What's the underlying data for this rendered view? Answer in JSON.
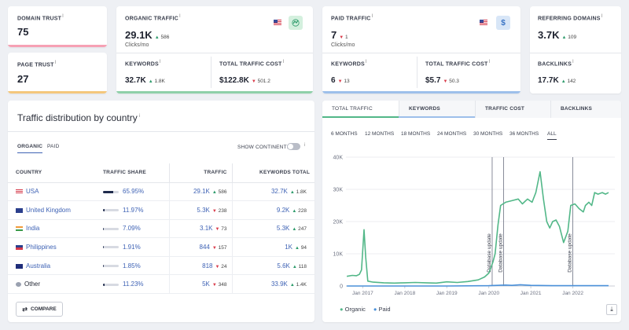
{
  "domain_trust": {
    "label": "DOMAIN TRUST",
    "info": "i",
    "value": "75",
    "color": "#f6a1b4"
  },
  "page_trust": {
    "label": "PAGE TRUST",
    "info": "i",
    "value": "27",
    "color": "#f4c77c"
  },
  "organic": {
    "label": "ORGANIC TRAFFIC",
    "info": "i",
    "value": "29.1K",
    "delta": "586",
    "delta_dir": "up",
    "sub": "Clicks/mo",
    "color": "#8fd0a9",
    "keywords": {
      "label": "KEYWORDS",
      "info": "i",
      "value": "32.7K",
      "delta": "1.8K",
      "delta_dir": "up"
    },
    "cost": {
      "label": "TOTAL TRAFFIC COST",
      "info": "i",
      "value": "$122.8K",
      "delta": "501.2",
      "delta_dir": "down"
    }
  },
  "paid": {
    "label": "PAID TRAFFIC",
    "info": "i",
    "value": "7",
    "delta": "1",
    "delta_dir": "down",
    "sub": "Clicks/mo",
    "icon_text": "$",
    "color": "#9dbfea",
    "keywords": {
      "label": "KEYWORDS",
      "info": "i",
      "value": "6",
      "delta": "13",
      "delta_dir": "down"
    },
    "cost": {
      "label": "TOTAL TRAFFIC COST",
      "info": "i",
      "value": "$5.7",
      "delta": "50.3",
      "delta_dir": "down"
    }
  },
  "referring": {
    "label": "REFERRING DOMAINS",
    "info": "i",
    "value": "3.7K",
    "delta": "109",
    "delta_dir": "up",
    "backlinks": {
      "label": "BACKLINKS",
      "info": "i",
      "value": "17.7K",
      "delta": "142",
      "delta_dir": "up"
    }
  },
  "distribution": {
    "title": "Traffic distribution by country",
    "info": "i",
    "tabs": [
      "ORGANIC",
      "PAID"
    ],
    "show_continents": "SHOW CONTINENTS",
    "columns": [
      "COUNTRY",
      "TRAFFIC SHARE",
      "TRAFFIC",
      "KEYWORDS TOTAL"
    ],
    "rows": [
      {
        "country": "USA",
        "flag": "us-flag",
        "share": "65.95%",
        "share_frac": 0.6595,
        "traffic": "29.1K",
        "t_delta": "586",
        "t_dir": "up",
        "keywords": "32.7K",
        "k_delta": "1.8K",
        "k_dir": "up"
      },
      {
        "country": "United Kingdom",
        "flag": "uk-flag",
        "share": "11.97%",
        "share_frac": 0.1197,
        "traffic": "5.3K",
        "t_delta": "238",
        "t_dir": "down",
        "keywords": "9.2K",
        "k_delta": "228",
        "k_dir": "up"
      },
      {
        "country": "India",
        "flag": "india-flag",
        "share": "7.09%",
        "share_frac": 0.0709,
        "traffic": "3.1K",
        "t_delta": "73",
        "t_dir": "down",
        "keywords": "5.3K",
        "k_delta": "247",
        "k_dir": "up"
      },
      {
        "country": "Philippines",
        "flag": "philippines-flag",
        "share": "1.91%",
        "share_frac": 0.0191,
        "traffic": "844",
        "t_delta": "157",
        "t_dir": "down",
        "keywords": "1K",
        "k_delta": "94",
        "k_dir": "up"
      },
      {
        "country": "Australia",
        "flag": "australia-flag",
        "share": "1.85%",
        "share_frac": 0.0185,
        "traffic": "818",
        "t_delta": "24",
        "t_dir": "down",
        "keywords": "5.6K",
        "k_delta": "118",
        "k_dir": "up"
      },
      {
        "country": "Other",
        "flag": "globe-icon",
        "share": "11.23%",
        "share_frac": 0.1123,
        "traffic": "5K",
        "t_delta": "348",
        "t_dir": "down",
        "keywords": "33.9K",
        "k_delta": "1.4K",
        "k_dir": "up"
      }
    ],
    "compare": "COMPARE"
  },
  "chart_panel": {
    "tabs": [
      "TOTAL TRAFFIC",
      "KEYWORDS",
      "TRAFFIC COST",
      "BACKLINKS"
    ],
    "ranges": [
      "6 MONTHS",
      "12 MONTHS",
      "18 MONTHS",
      "24 MONTHS",
      "30 MONTHS",
      "36 MONTHS",
      "ALL"
    ],
    "active_range": "ALL",
    "legend": [
      "Organic",
      "Paid"
    ]
  },
  "chart_data": {
    "type": "line",
    "y_ticks": [
      "40K",
      "30K",
      "20K",
      "10K",
      "0"
    ],
    "ylim": [
      0,
      40000
    ],
    "x_ticks": [
      "Jan 2017",
      "Jan 2018",
      "Jan 2019",
      "Jan 2020",
      "Jan 2021",
      "Jan 2022"
    ],
    "x_tick_values": [
      2017,
      2018,
      2019,
      2020,
      2021,
      2022
    ],
    "xlim": [
      2016.6,
      2023.0
    ],
    "annotations": [
      {
        "x": 2020.08,
        "text": "Database update"
      },
      {
        "x": 2020.35,
        "text": "Database update"
      },
      {
        "x": 2022.0,
        "text": "Database update"
      }
    ],
    "colors": {
      "Organic": "#52b788",
      "Paid": "#4a90d9"
    },
    "series": [
      {
        "name": "Organic",
        "points": [
          [
            2016.62,
            3000
          ],
          [
            2016.75,
            3300
          ],
          [
            2016.85,
            3200
          ],
          [
            2016.92,
            3600
          ],
          [
            2016.97,
            5000
          ],
          [
            2017.03,
            17500
          ],
          [
            2017.07,
            9000
          ],
          [
            2017.12,
            1500
          ],
          [
            2017.25,
            1200
          ],
          [
            2017.5,
            1000
          ],
          [
            2017.75,
            900
          ],
          [
            2018.0,
            1000
          ],
          [
            2018.25,
            1100
          ],
          [
            2018.5,
            1000
          ],
          [
            2018.75,
            900
          ],
          [
            2019.0,
            1300
          ],
          [
            2019.25,
            1100
          ],
          [
            2019.5,
            1400
          ],
          [
            2019.75,
            1900
          ],
          [
            2019.9,
            2800
          ],
          [
            2020.0,
            4000
          ],
          [
            2020.1,
            7500
          ],
          [
            2020.15,
            10000
          ],
          [
            2020.22,
            19000
          ],
          [
            2020.28,
            25000
          ],
          [
            2020.4,
            26000
          ],
          [
            2020.55,
            26500
          ],
          [
            2020.7,
            27000
          ],
          [
            2020.8,
            25500
          ],
          [
            2020.92,
            27000
          ],
          [
            2021.03,
            26000
          ],
          [
            2021.12,
            29000
          ],
          [
            2021.22,
            35500
          ],
          [
            2021.3,
            27000
          ],
          [
            2021.38,
            20000
          ],
          [
            2021.45,
            18000
          ],
          [
            2021.52,
            20000
          ],
          [
            2021.6,
            20500
          ],
          [
            2021.68,
            18500
          ],
          [
            2021.78,
            13500
          ],
          [
            2021.88,
            17000
          ],
          [
            2021.95,
            25000
          ],
          [
            2022.05,
            25500
          ],
          [
            2022.15,
            24000
          ],
          [
            2022.25,
            23000
          ],
          [
            2022.3,
            25000
          ],
          [
            2022.38,
            26000
          ],
          [
            2022.45,
            25000
          ],
          [
            2022.52,
            29000
          ],
          [
            2022.6,
            28500
          ],
          [
            2022.7,
            29000
          ],
          [
            2022.78,
            28500
          ],
          [
            2022.85,
            29000
          ]
        ]
      },
      {
        "name": "Paid",
        "points": [
          [
            2016.62,
            0
          ],
          [
            2017.0,
            0
          ],
          [
            2018.0,
            0
          ],
          [
            2019.0,
            0
          ],
          [
            2020.0,
            100
          ],
          [
            2020.4,
            300
          ],
          [
            2020.55,
            200
          ],
          [
            2020.75,
            400
          ],
          [
            2021.0,
            200
          ],
          [
            2021.5,
            100
          ],
          [
            2022.0,
            100
          ],
          [
            2022.85,
            100
          ]
        ]
      }
    ]
  }
}
